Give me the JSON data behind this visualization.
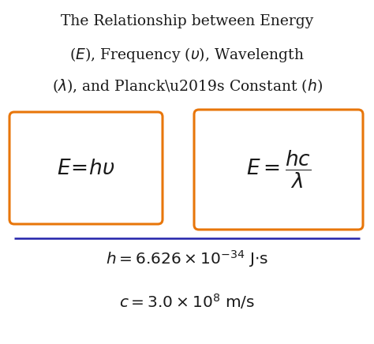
{
  "title_line1": "The Relationship between Energy",
  "title_line2": "($E$), Frequency (υ), Wavelength",
  "title_line3": "(λ), and Planck’s Constant ($h$)",
  "box_color": "#E8760A",
  "line_color": "#2222AA",
  "bg_color": "#FFFFFF",
  "text_color": "#1a1a1a",
  "title_fontsize": 13.5,
  "formula_fontsize": 19,
  "constants_fontsize": 14.5
}
